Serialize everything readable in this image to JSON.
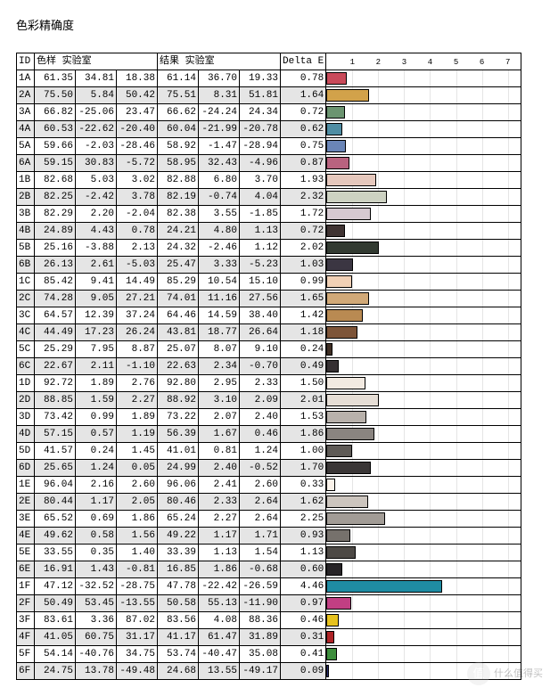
{
  "title": "色彩精确度",
  "headers": {
    "id": "ID",
    "sample": "色样 实验室",
    "result": "结果 实验室",
    "deltaE": "Delta E"
  },
  "chart": {
    "xmax": 7.5,
    "ticks": [
      1,
      2,
      3,
      4,
      5,
      6,
      7
    ],
    "tick_fontsize": 9,
    "grid_color": "#999999",
    "bar_border": "#000000"
  },
  "colwidths": {
    "id": 20,
    "val": 46,
    "deltaE": 40,
    "chart": 218
  },
  "rows": [
    {
      "id": "1A",
      "s": [
        61.35,
        34.81,
        18.38
      ],
      "r": [
        61.14,
        36.7,
        19.33
      ],
      "de": 0.78,
      "color": "#c94a5a",
      "shade": false
    },
    {
      "id": "2A",
      "s": [
        75.5,
        5.84,
        50.42
      ],
      "r": [
        75.51,
        8.31,
        51.81
      ],
      "de": 1.64,
      "color": "#d2a24a",
      "shade": true
    },
    {
      "id": "3A",
      "s": [
        66.82,
        -25.06,
        23.47
      ],
      "r": [
        66.62,
        -24.24,
        24.34
      ],
      "de": 0.72,
      "color": "#6b9470",
      "shade": false
    },
    {
      "id": "4A",
      "s": [
        60.53,
        -22.62,
        -20.4
      ],
      "r": [
        60.04,
        -21.99,
        -20.78
      ],
      "de": 0.62,
      "color": "#4f8da3",
      "shade": true
    },
    {
      "id": "5A",
      "s": [
        59.66,
        -2.03,
        -28.46
      ],
      "r": [
        58.92,
        -1.47,
        -28.94
      ],
      "de": 0.75,
      "color": "#6a85b7",
      "shade": false
    },
    {
      "id": "6A",
      "s": [
        59.15,
        30.83,
        -5.72
      ],
      "r": [
        58.95,
        32.43,
        -4.96
      ],
      "de": 0.87,
      "color": "#b9637f",
      "shade": true
    },
    {
      "id": "1B",
      "s": [
        82.68,
        5.03,
        3.02
      ],
      "r": [
        82.88,
        6.8,
        3.7
      ],
      "de": 1.93,
      "color": "#e6c8bd",
      "shade": false
    },
    {
      "id": "2B",
      "s": [
        82.25,
        -2.42,
        3.78
      ],
      "r": [
        82.19,
        -0.74,
        4.04
      ],
      "de": 2.32,
      "color": "#cdd2c2",
      "shade": true
    },
    {
      "id": "3B",
      "s": [
        82.29,
        2.2,
        -2.04
      ],
      "r": [
        82.38,
        3.55,
        -1.85
      ],
      "de": 1.72,
      "color": "#d6c9d1",
      "shade": false
    },
    {
      "id": "4B",
      "s": [
        24.89,
        4.43,
        0.78
      ],
      "r": [
        24.21,
        4.8,
        1.13
      ],
      "de": 0.72,
      "color": "#3f3332",
      "shade": true
    },
    {
      "id": "5B",
      "s": [
        25.16,
        -3.88,
        2.13
      ],
      "r": [
        24.32,
        -2.46,
        1.12
      ],
      "de": 2.02,
      "color": "#323a31",
      "shade": false
    },
    {
      "id": "6B",
      "s": [
        26.13,
        2.61,
        -5.03
      ],
      "r": [
        25.47,
        3.33,
        -5.23
      ],
      "de": 1.03,
      "color": "#3b3642",
      "shade": true
    },
    {
      "id": "1C",
      "s": [
        85.42,
        9.41,
        14.49
      ],
      "r": [
        85.29,
        10.54,
        15.1
      ],
      "de": 0.99,
      "color": "#f0d0b5",
      "shade": false
    },
    {
      "id": "2C",
      "s": [
        74.28,
        9.05,
        27.21
      ],
      "r": [
        74.01,
        11.16,
        27.56
      ],
      "de": 1.65,
      "color": "#d1a978",
      "shade": true
    },
    {
      "id": "3C",
      "s": [
        64.57,
        12.39,
        37.24
      ],
      "r": [
        64.46,
        14.59,
        38.4
      ],
      "de": 1.42,
      "color": "#b98a52",
      "shade": false
    },
    {
      "id": "4C",
      "s": [
        44.49,
        17.23,
        26.24
      ],
      "r": [
        43.81,
        18.77,
        26.64
      ],
      "de": 1.18,
      "color": "#7d5438",
      "shade": true
    },
    {
      "id": "5C",
      "s": [
        25.29,
        7.95,
        8.87
      ],
      "r": [
        25.07,
        8.07,
        9.1
      ],
      "de": 0.24,
      "color": "#3f2e24",
      "shade": false
    },
    {
      "id": "6C",
      "s": [
        22.67,
        2.11,
        -1.1
      ],
      "r": [
        22.63,
        2.34,
        -0.7
      ],
      "de": 0.49,
      "color": "#353032",
      "shade": true
    },
    {
      "id": "1D",
      "s": [
        92.72,
        1.89,
        2.76
      ],
      "r": [
        92.8,
        2.95,
        2.33
      ],
      "de": 1.5,
      "color": "#f2eae1",
      "shade": false
    },
    {
      "id": "2D",
      "s": [
        88.85,
        1.59,
        2.27
      ],
      "r": [
        88.92,
        3.1,
        2.09
      ],
      "de": 2.01,
      "color": "#e6ded6",
      "shade": true
    },
    {
      "id": "3D",
      "s": [
        73.42,
        0.99,
        1.89
      ],
      "r": [
        73.22,
        2.07,
        2.4
      ],
      "de": 1.53,
      "color": "#b8b1ab",
      "shade": false
    },
    {
      "id": "4D",
      "s": [
        57.15,
        0.57,
        1.19
      ],
      "r": [
        56.39,
        1.67,
        0.46
      ],
      "de": 1.86,
      "color": "#8a8480",
      "shade": true
    },
    {
      "id": "5D",
      "s": [
        41.57,
        0.24,
        1.45
      ],
      "r": [
        41.01,
        0.81,
        1.24
      ],
      "de": 1.0,
      "color": "#5e5a56",
      "shade": false
    },
    {
      "id": "6D",
      "s": [
        25.65,
        1.24,
        0.05
      ],
      "r": [
        24.99,
        2.4,
        -0.52
      ],
      "de": 1.7,
      "color": "#3a3636",
      "shade": true
    },
    {
      "id": "1E",
      "s": [
        96.04,
        2.16,
        2.6
      ],
      "r": [
        96.06,
        2.41,
        2.6
      ],
      "de": 0.33,
      "color": "#faf2ea",
      "shade": false
    },
    {
      "id": "2E",
      "s": [
        80.44,
        1.17,
        2.05
      ],
      "r": [
        80.46,
        2.33,
        2.64
      ],
      "de": 1.62,
      "color": "#ccc5be",
      "shade": true
    },
    {
      "id": "3E",
      "s": [
        65.52,
        0.69,
        1.86
      ],
      "r": [
        65.24,
        2.27,
        2.64
      ],
      "de": 2.25,
      "color": "#a29c96",
      "shade": false
    },
    {
      "id": "4E",
      "s": [
        49.62,
        0.58,
        1.56
      ],
      "r": [
        49.22,
        1.17,
        1.71
      ],
      "de": 0.93,
      "color": "#76716c",
      "shade": true
    },
    {
      "id": "5E",
      "s": [
        33.55,
        0.35,
        1.4
      ],
      "r": [
        33.39,
        1.13,
        1.54
      ],
      "de": 1.13,
      "color": "#4d4945",
      "shade": false
    },
    {
      "id": "6E",
      "s": [
        16.91,
        1.43,
        -0.81
      ],
      "r": [
        16.85,
        1.86,
        -0.68
      ],
      "de": 0.6,
      "color": "#272427",
      "shade": true
    },
    {
      "id": "1F",
      "s": [
        47.12,
        -32.52,
        -28.75
      ],
      "r": [
        47.78,
        -22.42,
        -26.59
      ],
      "de": 4.46,
      "color": "#1f8ca3",
      "shade": false
    },
    {
      "id": "2F",
      "s": [
        50.49,
        53.45,
        -13.55
      ],
      "r": [
        50.58,
        55.13,
        -11.9
      ],
      "de": 0.97,
      "color": "#c13f83",
      "shade": true
    },
    {
      "id": "3F",
      "s": [
        83.61,
        3.36,
        87.02
      ],
      "r": [
        83.56,
        4.08,
        88.36
      ],
      "de": 0.46,
      "color": "#e7c21e",
      "shade": false
    },
    {
      "id": "4F",
      "s": [
        41.05,
        60.75,
        31.17
      ],
      "r": [
        41.17,
        61.47,
        31.89
      ],
      "de": 0.31,
      "color": "#ae2326",
      "shade": true
    },
    {
      "id": "5F",
      "s": [
        54.14,
        -40.76,
        34.75
      ],
      "r": [
        53.74,
        -40.47,
        35.08
      ],
      "de": 0.41,
      "color": "#3d8e3c",
      "shade": false
    },
    {
      "id": "6F",
      "s": [
        24.75,
        13.78,
        -49.48
      ],
      "r": [
        24.68,
        13.55,
        -49.17
      ],
      "de": 0.09,
      "color": "#2a2e74",
      "shade": true
    }
  ],
  "watermark": {
    "badge": "值",
    "text": "什么值得买"
  }
}
